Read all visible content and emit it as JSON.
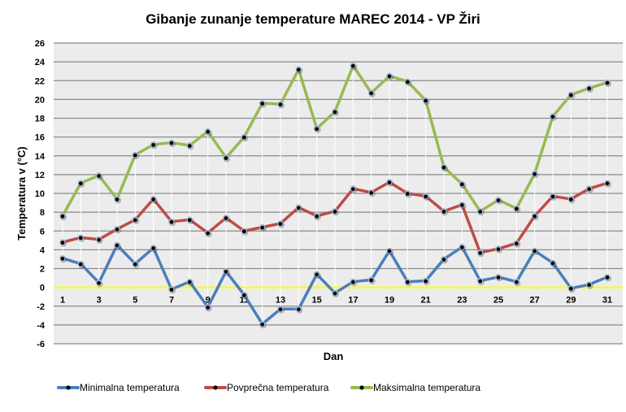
{
  "chart_data": {
    "type": "line",
    "title": "Gibanje zunanje  temperature  MAREC 2014 - VP Žiri",
    "xlabel": "Dan",
    "ylabel": "Temperatura v (°C)",
    "ylim": [
      -6,
      26
    ],
    "yticks": [
      26,
      24,
      22,
      20,
      18,
      16,
      14,
      12,
      10,
      8,
      6,
      4,
      2,
      0,
      -2,
      -4,
      -6
    ],
    "xticks": [
      1,
      3,
      5,
      7,
      9,
      11,
      13,
      15,
      17,
      19,
      21,
      23,
      25,
      27,
      29,
      31
    ],
    "x": [
      1,
      2,
      3,
      4,
      5,
      6,
      7,
      8,
      9,
      10,
      11,
      12,
      13,
      14,
      15,
      16,
      17,
      18,
      19,
      20,
      21,
      22,
      23,
      24,
      25,
      26,
      27,
      28,
      29,
      30,
      31
    ],
    "grid": true,
    "legend_position": "bottom",
    "reference_line": {
      "y": 0,
      "color": "#ffff00"
    },
    "series": [
      {
        "name": "Minimalna temperatura",
        "color": "#4a7ebb",
        "values": [
          3.1,
          2.5,
          0.5,
          4.5,
          2.5,
          4.2,
          -0.2,
          0.6,
          -2.1,
          1.7,
          -0.8,
          -3.9,
          -2.3,
          -2.3,
          1.4,
          -0.6,
          0.6,
          0.8,
          3.9,
          0.6,
          0.7,
          3.0,
          4.3,
          0.7,
          1.1,
          0.6,
          3.9,
          2.6,
          -0.1,
          0.3,
          1.1
        ]
      },
      {
        "name": "Povprečna temperatura",
        "color": "#be4b48",
        "values": [
          4.8,
          5.3,
          5.1,
          6.2,
          7.2,
          9.4,
          7.0,
          7.2,
          5.8,
          7.4,
          6.0,
          6.4,
          6.8,
          8.5,
          7.6,
          8.1,
          10.5,
          10.1,
          11.2,
          10.0,
          9.7,
          8.1,
          8.8,
          3.7,
          4.1,
          4.7,
          7.6,
          9.7,
          9.4,
          10.5,
          11.1
        ]
      },
      {
        "name": "Maksimalna  temperatura",
        "color": "#98b954",
        "values": [
          7.6,
          11.1,
          11.9,
          9.4,
          14.1,
          15.2,
          15.4,
          15.1,
          16.6,
          13.8,
          16.0,
          19.6,
          19.5,
          23.2,
          16.9,
          18.7,
          23.6,
          20.7,
          22.5,
          21.9,
          19.9,
          12.8,
          11.0,
          8.1,
          9.3,
          8.4,
          12.1,
          18.2,
          20.5,
          21.2,
          21.8
        ]
      }
    ]
  }
}
